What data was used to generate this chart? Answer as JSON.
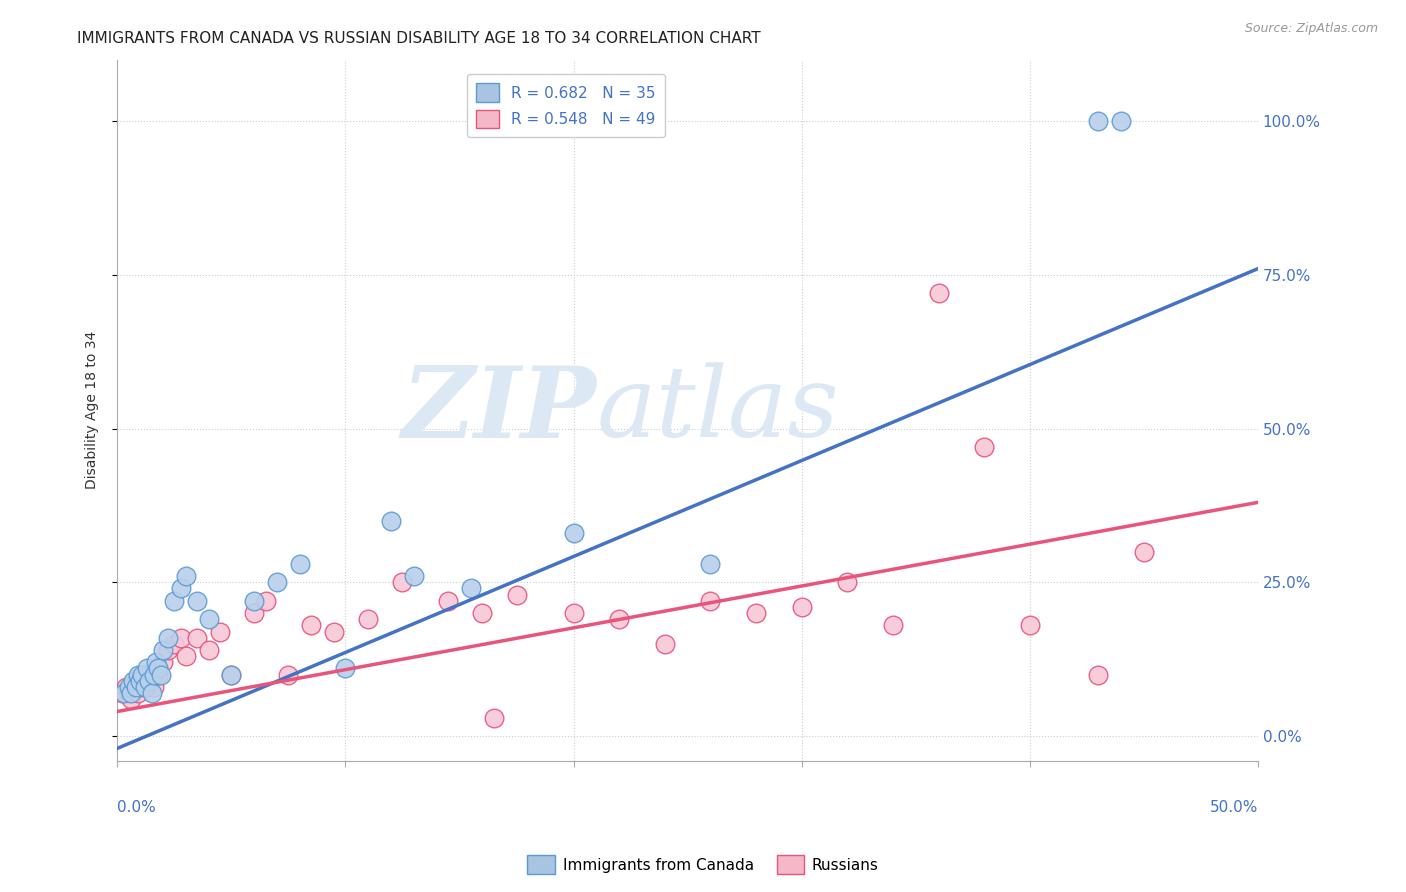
{
  "title": "IMMIGRANTS FROM CANADA VS RUSSIAN DISABILITY AGE 18 TO 34 CORRELATION CHART",
  "source": "Source: ZipAtlas.com",
  "ylabel": "Disability Age 18 to 34",
  "ytick_labels": [
    "0.0%",
    "25.0%",
    "50.0%",
    "75.0%",
    "100.0%"
  ],
  "ytick_vals": [
    0.0,
    0.25,
    0.5,
    0.75,
    1.0
  ],
  "xlim": [
    0.0,
    0.5
  ],
  "ylim": [
    -0.04,
    1.1
  ],
  "legend1_label": "R = 0.682   N = 35",
  "legend2_label": "R = 0.548   N = 49",
  "legend_color1": "#a8c4e0",
  "legend_color2": "#f4b8c8",
  "line_color1": "#4472c4",
  "line_color2": "#e8547a",
  "scatter_color1": "#b8d0ea",
  "scatter_color2": "#f8c8d8",
  "scatter_edgecolor1": "#5b9bd5",
  "scatter_edgecolor2": "#e8547a",
  "watermark_zip": "ZIP",
  "watermark_atlas": "atlas",
  "watermark_color": "#dde8f5",
  "blue_scatter_x": [
    0.003,
    0.005,
    0.006,
    0.007,
    0.008,
    0.009,
    0.01,
    0.011,
    0.012,
    0.013,
    0.014,
    0.015,
    0.016,
    0.017,
    0.018,
    0.019,
    0.02,
    0.022,
    0.025,
    0.028,
    0.03,
    0.035,
    0.04,
    0.05,
    0.06,
    0.07,
    0.08,
    0.1,
    0.13,
    0.155,
    0.2,
    0.26,
    0.43,
    0.44,
    0.12
  ],
  "blue_scatter_y": [
    0.07,
    0.08,
    0.07,
    0.09,
    0.08,
    0.1,
    0.09,
    0.1,
    0.08,
    0.11,
    0.09,
    0.07,
    0.1,
    0.12,
    0.11,
    0.1,
    0.14,
    0.16,
    0.22,
    0.24,
    0.26,
    0.22,
    0.19,
    0.1,
    0.22,
    0.25,
    0.28,
    0.11,
    0.26,
    0.24,
    0.33,
    0.28,
    1.0,
    1.0,
    0.35
  ],
  "pink_scatter_x": [
    0.002,
    0.004,
    0.005,
    0.006,
    0.007,
    0.008,
    0.009,
    0.01,
    0.011,
    0.012,
    0.013,
    0.014,
    0.015,
    0.016,
    0.017,
    0.018,
    0.02,
    0.022,
    0.025,
    0.028,
    0.03,
    0.035,
    0.04,
    0.045,
    0.05,
    0.06,
    0.065,
    0.075,
    0.085,
    0.095,
    0.11,
    0.125,
    0.145,
    0.165,
    0.2,
    0.22,
    0.24,
    0.28,
    0.3,
    0.34,
    0.36,
    0.38,
    0.4,
    0.43,
    0.45,
    0.16,
    0.175,
    0.26,
    0.32
  ],
  "pink_scatter_y": [
    0.07,
    0.08,
    0.07,
    0.06,
    0.08,
    0.09,
    0.07,
    0.08,
    0.09,
    0.1,
    0.08,
    0.09,
    0.1,
    0.08,
    0.11,
    0.1,
    0.12,
    0.14,
    0.15,
    0.16,
    0.13,
    0.16,
    0.14,
    0.17,
    0.1,
    0.2,
    0.22,
    0.1,
    0.18,
    0.17,
    0.19,
    0.25,
    0.22,
    0.03,
    0.2,
    0.19,
    0.15,
    0.2,
    0.21,
    0.18,
    0.72,
    0.47,
    0.18,
    0.1,
    0.3,
    0.2,
    0.23,
    0.22,
    0.25
  ],
  "blue_line_x": [
    0.0,
    0.5
  ],
  "blue_line_y": [
    -0.02,
    0.76
  ],
  "pink_line_x": [
    0.0,
    0.5
  ],
  "pink_line_y": [
    0.04,
    0.38
  ],
  "bottom_legend_label1": "Immigrants from Canada",
  "bottom_legend_label2": "Russians",
  "title_fontsize": 11,
  "axis_label_fontsize": 10,
  "tick_fontsize": 10,
  "background_color": "#ffffff"
}
